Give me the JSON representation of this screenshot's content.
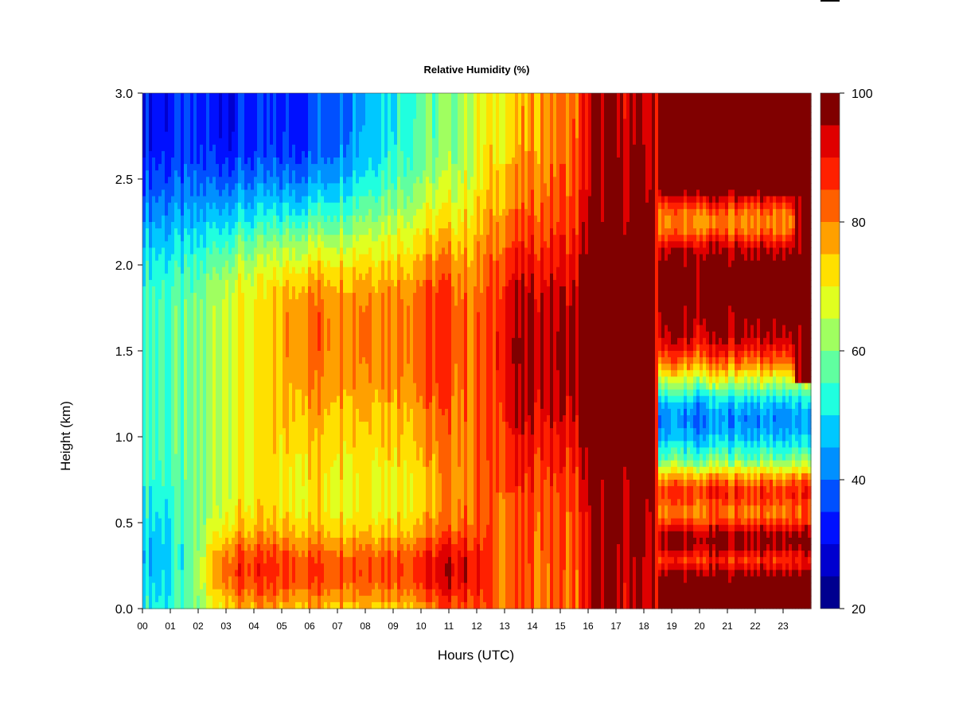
{
  "chart_data": {
    "type": "heatmap",
    "title": "Relative Humidity (%)",
    "xlabel": "Hours (UTC)",
    "ylabel": "Height (km)",
    "xlim": [
      0,
      24
    ],
    "ylim": [
      0,
      3.0
    ],
    "x_ticks": [
      "00",
      "01",
      "02",
      "03",
      "04",
      "05",
      "06",
      "07",
      "08",
      "09",
      "10",
      "11",
      "12",
      "13",
      "14",
      "15",
      "16",
      "17",
      "18",
      "19",
      "20",
      "21",
      "22",
      "23"
    ],
    "y_ticks": [
      "0.0",
      "0.5",
      "1.0",
      "1.5",
      "2.0",
      "2.5",
      "3.0"
    ],
    "x_hours": [
      0,
      1,
      2,
      3,
      4,
      5,
      6,
      7,
      8,
      9,
      10,
      11,
      12,
      13,
      14,
      15,
      16,
      17,
      18,
      19,
      20,
      21,
      22,
      23
    ],
    "y_km": [
      0.0,
      0.5,
      1.0,
      1.5,
      2.0,
      2.5,
      3.0
    ],
    "colorbar": {
      "range": [
        20,
        100
      ],
      "ticks": [
        "20",
        "40",
        "60",
        "80",
        "100"
      ],
      "tick_values": [
        20,
        40,
        60,
        80,
        100
      ],
      "levels": [
        20,
        25,
        30,
        35,
        40,
        45,
        50,
        55,
        60,
        65,
        70,
        75,
        80,
        85,
        90,
        95,
        100
      ],
      "colors": [
        "#00008f",
        "#0000cf",
        "#0010ff",
        "#0050ff",
        "#0090ff",
        "#00c8ff",
        "#20ffdf",
        "#60ffa0",
        "#a0ff60",
        "#e0ff20",
        "#ffe000",
        "#ffa000",
        "#ff6000",
        "#ff2000",
        "#df0000",
        "#800000"
      ]
    },
    "grid": false,
    "legend": "colorbar-right"
  }
}
